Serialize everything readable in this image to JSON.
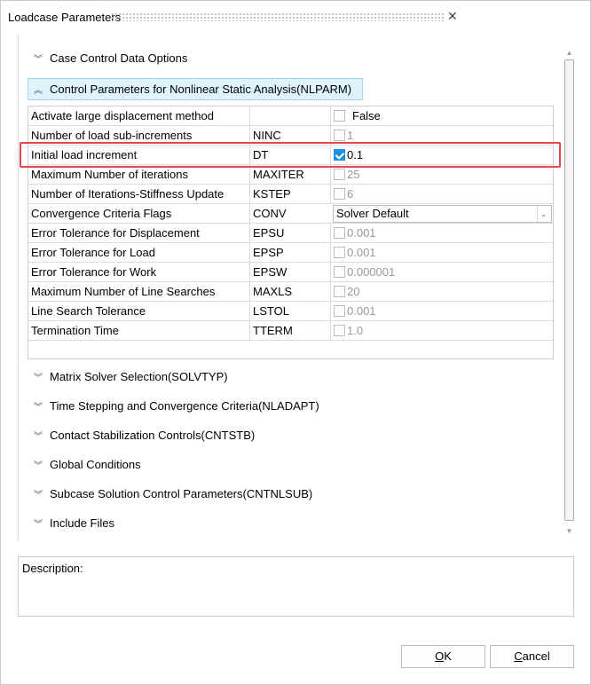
{
  "window": {
    "title": "Loadcase Parameters",
    "close_icon": "close-icon"
  },
  "sections_top": [
    {
      "label": "Case Control Data Options",
      "state": "collapsed"
    }
  ],
  "expanded_section": {
    "label": "Control Parameters for Nonlinear Static Analysis(NLPARM)",
    "state": "expanded"
  },
  "table": {
    "rows": [
      {
        "label": "Activate large displacement method",
        "code": "",
        "type": "checkbox",
        "checked": false,
        "enabled": true,
        "value": "False"
      },
      {
        "label": "Number of load sub-increments",
        "code": "NINC",
        "type": "checkbox",
        "checked": false,
        "enabled": false,
        "value": "1"
      },
      {
        "label": "Initial load increment",
        "code": "DT",
        "type": "checkbox",
        "checked": true,
        "enabled": true,
        "value": "0.1",
        "highlighted": true
      },
      {
        "label": "Maximum Number of iterations",
        "code": "MAXITER",
        "type": "checkbox",
        "checked": false,
        "enabled": false,
        "value": "25"
      },
      {
        "label": "Number of Iterations-Stiffness Update",
        "code": "KSTEP",
        "type": "checkbox",
        "checked": false,
        "enabled": false,
        "value": "6"
      },
      {
        "label": "Convergence Criteria Flags",
        "code": "CONV",
        "type": "combo",
        "value": "Solver Default"
      },
      {
        "label": "Error Tolerance for Displacement",
        "code": "EPSU",
        "type": "checkbox",
        "checked": false,
        "enabled": false,
        "value": "0.001"
      },
      {
        "label": "Error Tolerance for Load",
        "code": "EPSP",
        "type": "checkbox",
        "checked": false,
        "enabled": false,
        "value": "0.001"
      },
      {
        "label": "Error Tolerance for Work",
        "code": "EPSW",
        "type": "checkbox",
        "checked": false,
        "enabled": false,
        "value": "0.000001"
      },
      {
        "label": "Maximum Number of Line Searches",
        "code": "MAXLS",
        "type": "checkbox",
        "checked": false,
        "enabled": false,
        "value": "20"
      },
      {
        "label": "Line Search Tolerance",
        "code": "LSTOL",
        "type": "checkbox",
        "checked": false,
        "enabled": false,
        "value": "0.001"
      },
      {
        "label": "Termination Time",
        "code": "TTERM",
        "type": "checkbox",
        "checked": false,
        "enabled": false,
        "value": "1.0"
      }
    ]
  },
  "sections_bottom": [
    {
      "label": "Matrix Solver Selection(SOLVTYP)",
      "state": "collapsed"
    },
    {
      "label": "Time Stepping and Convergence Criteria(NLADAPT)",
      "state": "collapsed"
    },
    {
      "label": "Contact Stabilization Controls(CNTSTB)",
      "state": "collapsed"
    },
    {
      "label": "Global Conditions",
      "state": "collapsed"
    },
    {
      "label": "Subcase Solution Control Parameters(CNTNLSUB)",
      "state": "collapsed"
    },
    {
      "label": "Include Files",
      "state": "collapsed"
    }
  ],
  "description": {
    "label": "Description:"
  },
  "buttons": {
    "ok_mnemonic": "O",
    "ok_rest": "K",
    "cancel_mnemonic": "C",
    "cancel_rest": "ancel"
  },
  "colors": {
    "highlight": "#e8464b",
    "expanded_header_bg": "#dff3fb",
    "checkbox_checked": "#1e90e0"
  }
}
